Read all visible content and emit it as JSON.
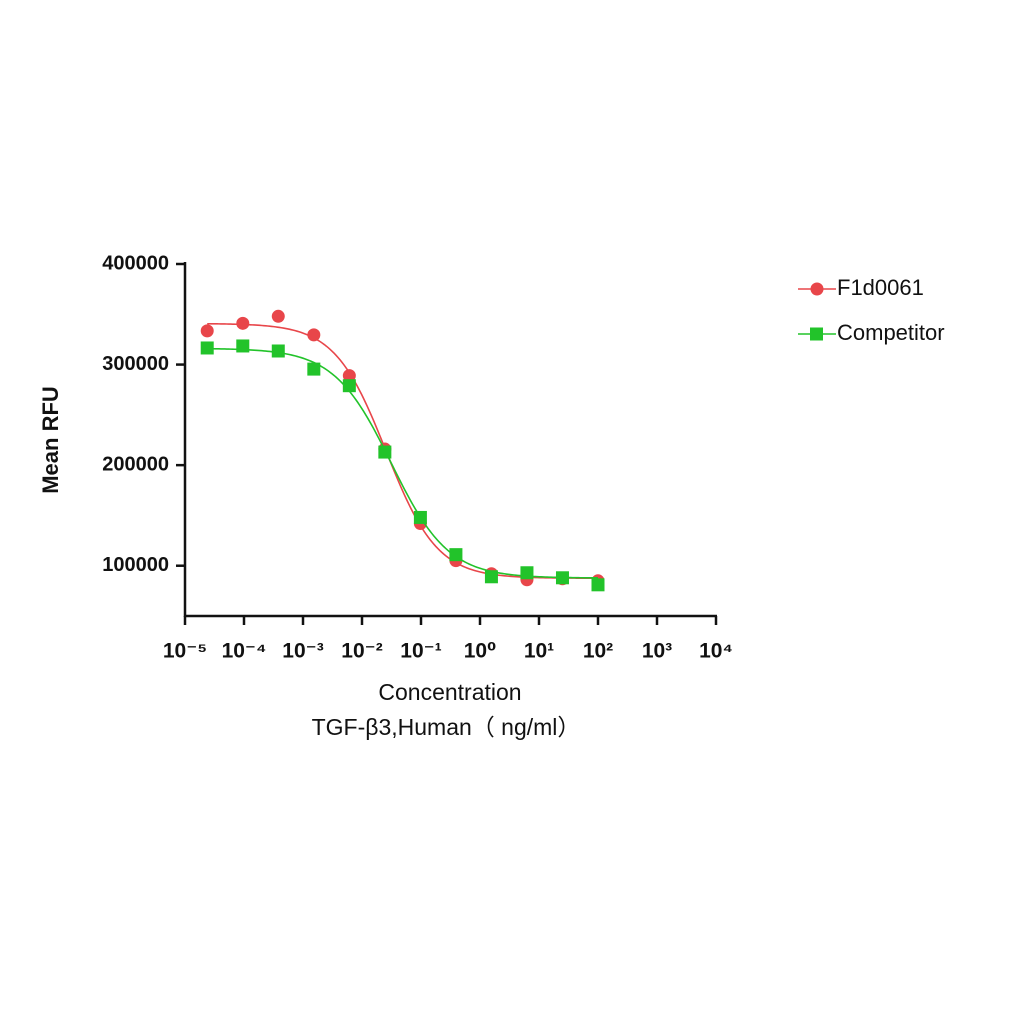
{
  "chart_data": {
    "type": "scatter",
    "y_label": "Mean RFU",
    "x_label": [
      "Concentration",
      "TGF-β3,Human（ ng/ml）"
    ],
    "xscale": "log",
    "x": [
      2.38e-05,
      9.54e-05,
      0.000381,
      0.001526,
      0.0061,
      0.0244,
      0.0977,
      0.3906,
      1.5625,
      6.25,
      25,
      100
    ],
    "series": [
      {
        "name": "F1d0061",
        "color": "#e8464a",
        "marker": "circle",
        "values": [
          333500,
          341000,
          348000,
          329500,
          289000,
          216000,
          142000,
          105000,
          92000,
          86000,
          87000,
          85000
        ]
      },
      {
        "name": "Competitor",
        "color": "#22c32a",
        "marker": "square",
        "values": [
          316500,
          318500,
          313500,
          295500,
          279000,
          213000,
          148000,
          111000,
          89000,
          93000,
          88000,
          81000
        ]
      }
    ],
    "xlim": [
      1e-05,
      10000
    ],
    "xticks": [
      {
        "value": 1e-05,
        "label": "10⁻⁵"
      },
      {
        "value": 0.0001,
        "label": "10⁻⁴"
      },
      {
        "value": 0.001,
        "label": "10⁻³"
      },
      {
        "value": 0.01,
        "label": "10⁻²"
      },
      {
        "value": 0.1,
        "label": "10⁻¹"
      },
      {
        "value": 1,
        "label": "10⁰"
      },
      {
        "value": 10,
        "label": "10¹"
      },
      {
        "value": 100,
        "label": "10²"
      },
      {
        "value": 1000,
        "label": "10³"
      },
      {
        "value": 10000,
        "label": "10⁴"
      }
    ],
    "ylim": [
      50000,
      400000
    ],
    "yticks": [
      100000,
      200000,
      300000,
      400000
    ],
    "legend": "right"
  }
}
